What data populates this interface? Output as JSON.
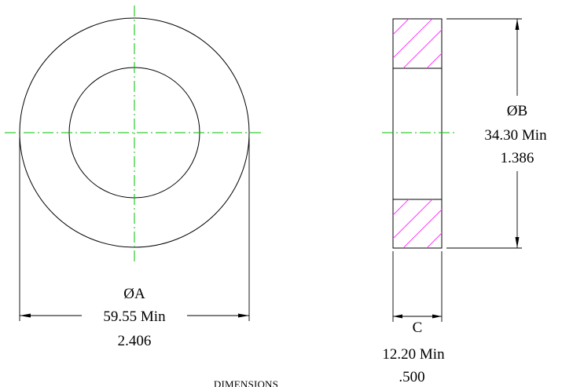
{
  "dimensions": {
    "a": {
      "symbol": "ØA",
      "metric": "59.55 Min",
      "imperial": "2.406"
    },
    "b": {
      "symbol": "ØB",
      "metric": "34.30 Min",
      "imperial": "1.386"
    },
    "c": {
      "symbol": "C",
      "metric": "12.20 Min",
      "imperial": ".500"
    }
  },
  "footer": {
    "title": "DIMENSIONS"
  },
  "colors": {
    "outline": "#000000",
    "centerline": "#00c000",
    "hatch": "#ff3cff",
    "background": "#ffffff"
  }
}
